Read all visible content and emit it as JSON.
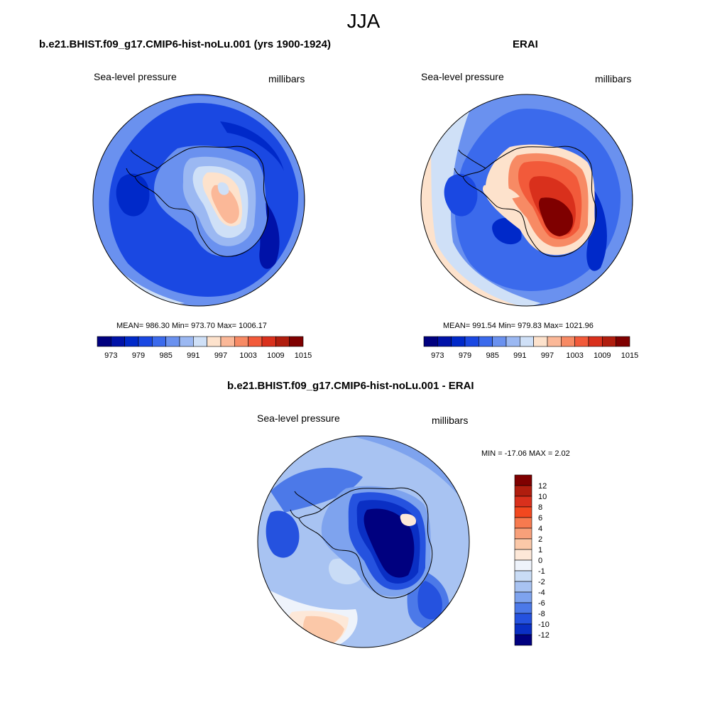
{
  "season": "JJA",
  "panels": [
    {
      "title": "b.e21.BHIST.f09_g17.CMIP6-hist-noLu.001 (yrs 1900-1924)",
      "left_label": "Sea-level pressure",
      "right_label": "millibars",
      "stats": "MEAN= 986.30  Min= 973.70  Max= 1006.17",
      "field": "model"
    },
    {
      "title": "ERAI",
      "left_label": "Sea-level pressure",
      "right_label": "millibars",
      "stats": "MEAN= 991.54  Min= 979.83  Max= 1021.96",
      "field": "erai"
    },
    {
      "title": "b.e21.BHIST.f09_g17.CMIP6-hist-noLu.001 - ERAI",
      "left_label": "Sea-level pressure",
      "right_label": "millibars",
      "stats": "MIN = -17.06 MAX =   2.02",
      "field": "diff"
    }
  ],
  "abs_colorbar": {
    "colors": [
      "#00007f",
      "#0012a8",
      "#0029c9",
      "#1a48e2",
      "#3b6aec",
      "#6a91ef",
      "#9bb8f2",
      "#cfe0f7",
      "#fde2cc",
      "#fbb898",
      "#f78a64",
      "#f25a3a",
      "#d9301c",
      "#b01d0e",
      "#7f0000"
    ],
    "tick_labels": [
      "973",
      "979",
      "985",
      "991",
      "997",
      "1003",
      "1009",
      "1015"
    ]
  },
  "diff_colorbar": {
    "colors": [
      "#7f0000",
      "#b01d0e",
      "#d9301c",
      "#f2481f",
      "#f77a4f",
      "#f8a07a",
      "#fbc8a8",
      "#fde8d8",
      "#eef3fb",
      "#c9dcf6",
      "#a8c3f2",
      "#7ea3ee",
      "#4c79e8",
      "#2552df",
      "#0a2fc4",
      "#00007f"
    ],
    "tick_labels": [
      "12",
      "10",
      "8",
      "6",
      "4",
      "2",
      "1",
      "0",
      "-1",
      "-2",
      "-4",
      "-6",
      "-8",
      "-10",
      "-12"
    ]
  },
  "colors": {
    "land_outline": "#000000",
    "map_border": "#000000"
  }
}
